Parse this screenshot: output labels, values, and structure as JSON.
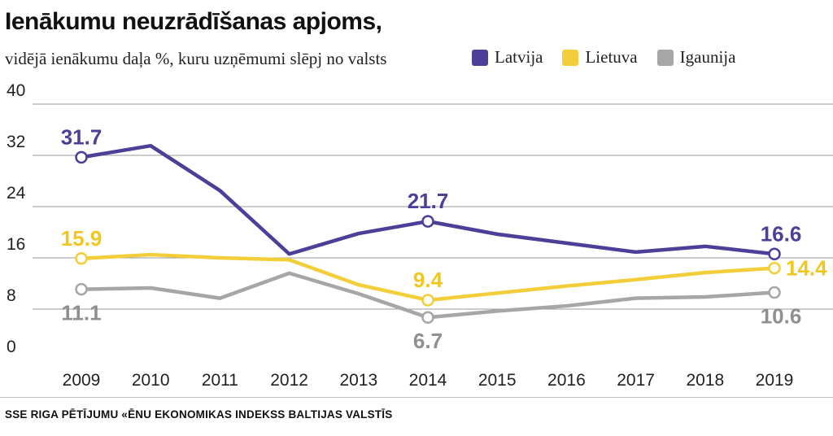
{
  "header": {
    "title": "Ienākumu neuzrādīšanas apjoms,",
    "subtitle": "vidējā ienākumu daļa %, kuru uzņēmumi slēpj no valsts"
  },
  "legend": [
    {
      "label": "Latvija",
      "color": "#4b3f98"
    },
    {
      "label": "Lietuva",
      "color": "#f2cf3a"
    },
    {
      "label": "Igaunija",
      "color": "#a6a6a6"
    }
  ],
  "source": "SSE RIGA PĒTĪJUMU «ĒNU EKONOMIKAS INDEKSS BALTIJAS VALSTĪS",
  "chart_data": {
    "type": "line",
    "x": [
      "2009",
      "2010",
      "2011",
      "2012",
      "2013",
      "2014",
      "2015",
      "2016",
      "2017",
      "2018",
      "2019"
    ],
    "ylim": [
      0,
      40
    ],
    "yticks": [
      "0",
      "8",
      "16",
      "24",
      "32",
      "40"
    ],
    "grid": true,
    "series": [
      {
        "name": "Latvija",
        "color": "#4b3f98",
        "values": [
          31.7,
          33.5,
          26.5,
          16.6,
          19.8,
          21.7,
          19.7,
          18.3,
          16.9,
          17.8,
          16.6
        ],
        "labeled": [
          {
            "index": 0,
            "text": "31.7",
            "pos": "above"
          },
          {
            "index": 5,
            "text": "21.7",
            "pos": "above"
          },
          {
            "index": 10,
            "text": "16.6",
            "pos": "above"
          }
        ]
      },
      {
        "name": "Lietuva",
        "color": "#f2cf3a",
        "values": [
          15.9,
          16.5,
          16.0,
          15.7,
          11.8,
          9.4,
          10.5,
          11.6,
          12.6,
          13.7,
          14.4
        ],
        "labeled": [
          {
            "index": 0,
            "text": "15.9",
            "pos": "above"
          },
          {
            "index": 5,
            "text": "9.4",
            "pos": "above"
          },
          {
            "index": 10,
            "text": "14.4",
            "pos": "right"
          }
        ]
      },
      {
        "name": "Igaunija",
        "color": "#a6a6a6",
        "values": [
          11.1,
          11.3,
          9.7,
          13.6,
          10.4,
          6.7,
          7.7,
          8.5,
          9.7,
          9.9,
          10.6
        ],
        "labeled": [
          {
            "index": 0,
            "text": "11.1",
            "pos": "below"
          },
          {
            "index": 5,
            "text": "6.7",
            "pos": "below"
          },
          {
            "index": 10,
            "text": "10.6",
            "pos": "below"
          }
        ]
      }
    ]
  }
}
